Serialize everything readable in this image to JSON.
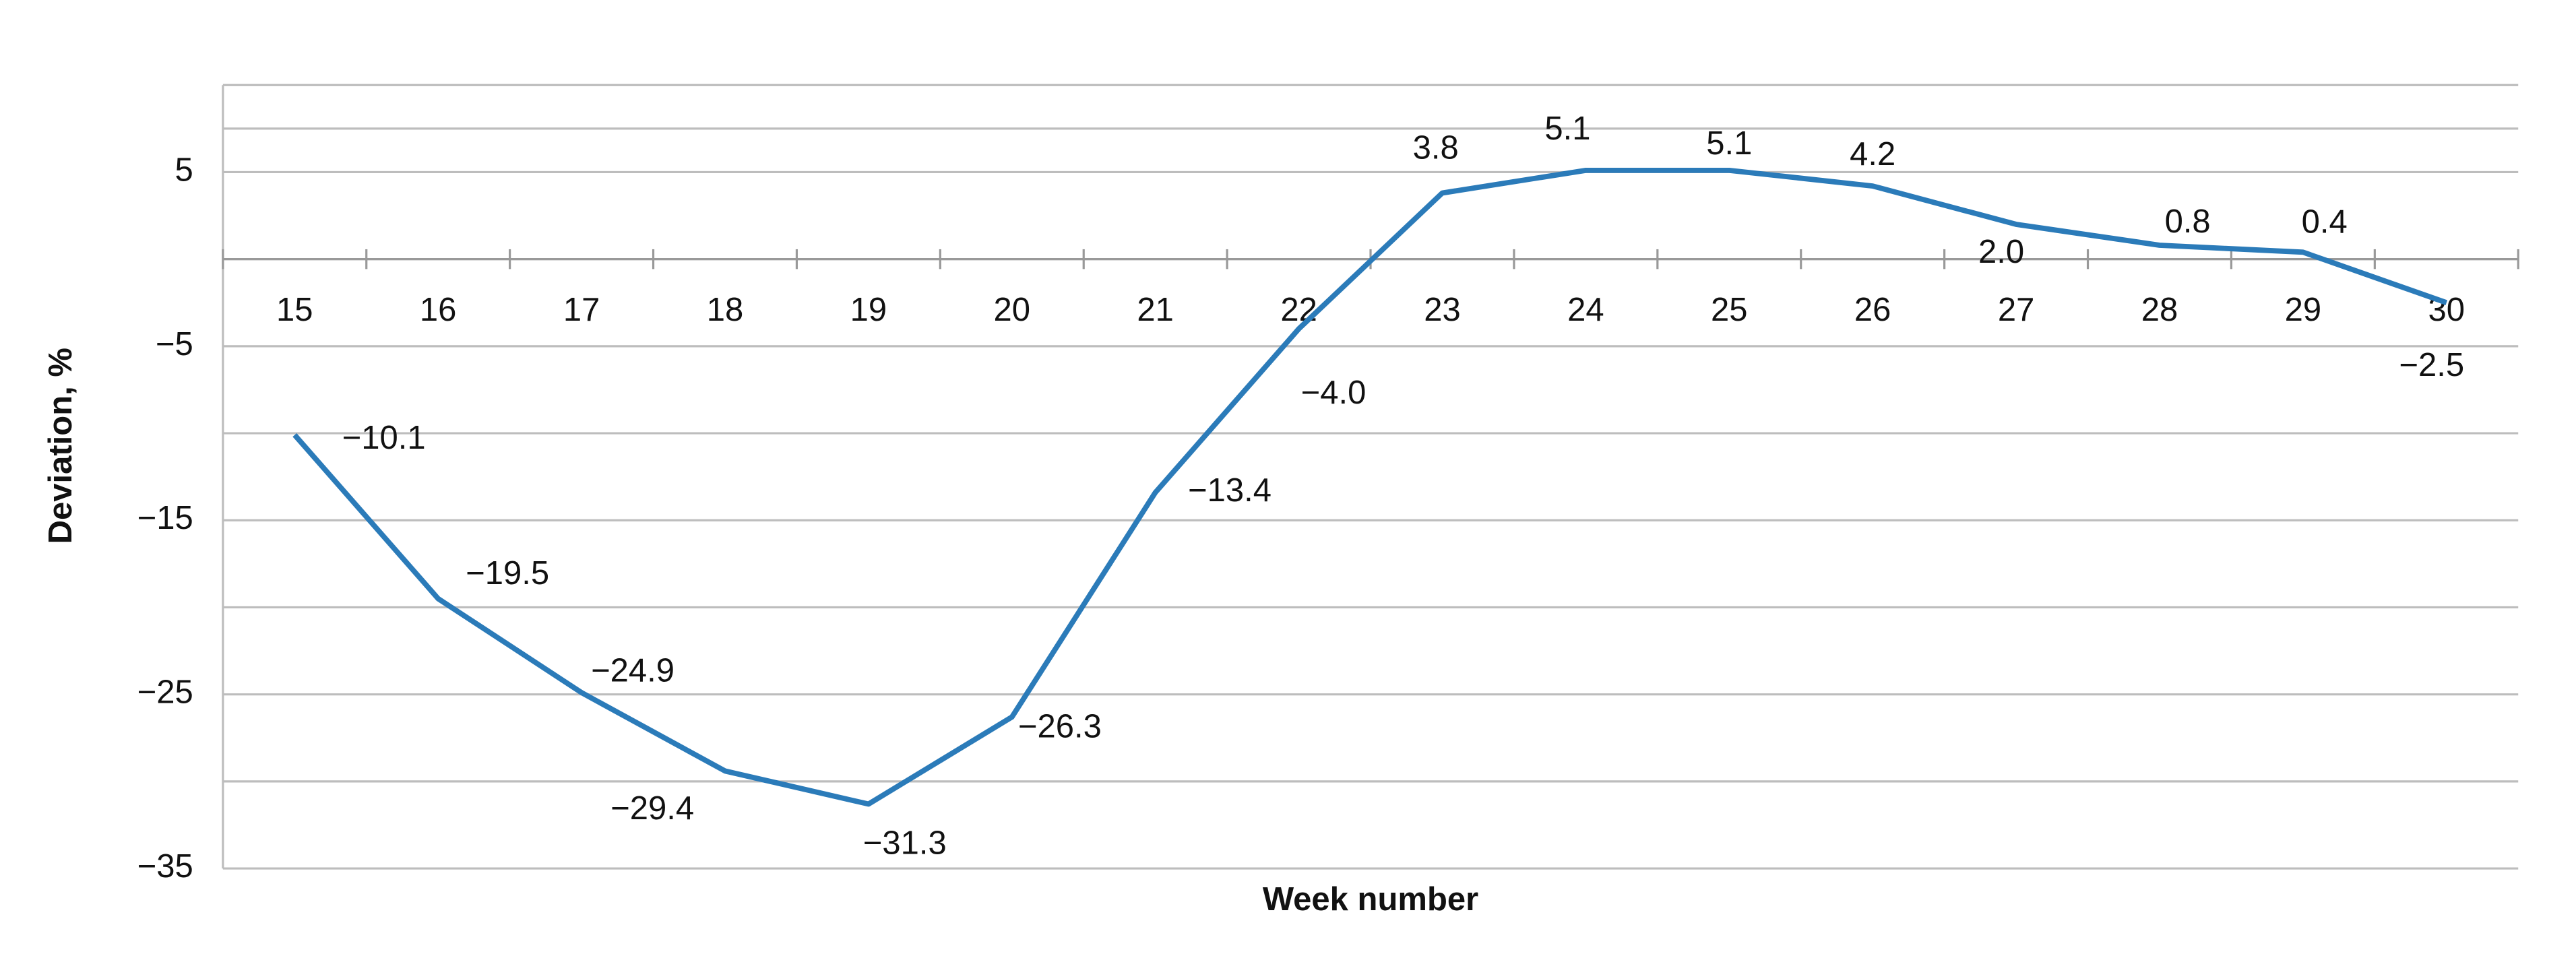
{
  "chart_data": {
    "type": "line",
    "x_label": "Week number",
    "y_label": "Deviation, %",
    "categories": [
      "15",
      "16",
      "17",
      "18",
      "19",
      "20",
      "21",
      "22",
      "23",
      "24",
      "25",
      "26",
      "27",
      "28",
      "29",
      "30"
    ],
    "series": [
      {
        "color": "#2b7bb9",
        "values": [
          -10.1,
          -19.5,
          -24.9,
          -29.4,
          -31.3,
          -26.3,
          -13.4,
          -4.0,
          3.8,
          5.1,
          5.1,
          4.2,
          2.0,
          0.8,
          0.4,
          -2.5
        ],
        "value_labels": [
          "−10.1",
          "−19.5",
          "−24.9",
          "−29.4",
          "−31.3",
          "−26.3",
          "−13.4",
          "−4.0",
          "3.8",
          "5.1",
          "5.1",
          "4.2",
          "2.0",
          "0.8",
          "0.4",
          "−2.5"
        ]
      }
    ],
    "ylim": [
      -35,
      10
    ],
    "yticks": [
      {
        "value": -35,
        "label": "−35"
      },
      {
        "value": -25,
        "label": "−25"
      },
      {
        "value": -15,
        "label": "−15"
      },
      {
        "value": -5,
        "label": "−5"
      },
      5
    ],
    "grid": true
  }
}
